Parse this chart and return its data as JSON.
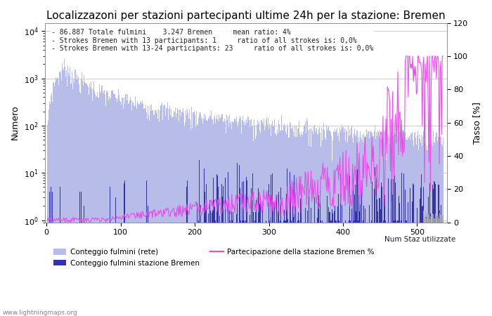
{
  "title": "Localizzazoni per stazioni partecipanti ultime 24h per la stazione: Bremen",
  "ylabel_left": "Numero",
  "ylabel_right": "Tasso [%]",
  "annotation_lines": [
    "86.887 Totale fulmini    3.247 Bremen     mean ratio: 4%",
    "Strokes Bremen with 13 participants: 1     ratio of all strokes is: 0,0%",
    "Strokes Bremen with 13-24 participants: 23     ratio of all strokes is: 0,0%"
  ],
  "watermark": "www.lightningmaps.org",
  "n_stations": 535,
  "background_color": "#ffffff",
  "grid_color": "#cccccc",
  "bar_color_network": "#b8bce8",
  "bar_color_bremen": "#3333aa",
  "line_color_participation": "#ee44ee",
  "line_color_numstaz": "#aaaaaa",
  "title_fontsize": 11,
  "axis_label_fontsize": 9,
  "tick_fontsize": 8,
  "annotation_fontsize": 7,
  "legend_fontsize": 7.5,
  "ylim_right": [
    0,
    120
  ],
  "yticks_right": [
    0,
    20,
    40,
    60,
    80,
    100,
    120
  ]
}
